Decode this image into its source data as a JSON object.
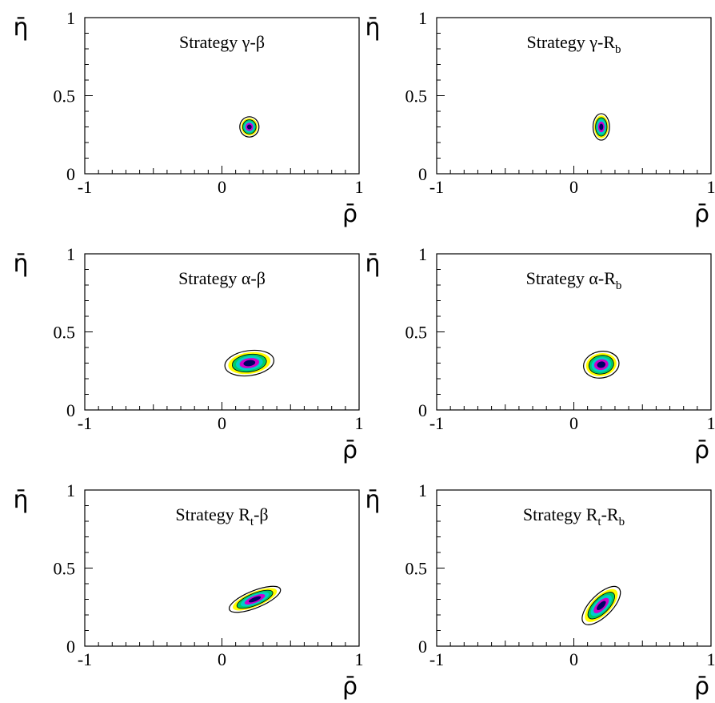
{
  "figure": {
    "panels": [
      {
        "title": "Strategy γ-β",
        "title_main": "Strategy γ-β",
        "title_sub": "",
        "title_tail": ""
      },
      {
        "title": "Strategy γ-Rb",
        "title_main": "Strategy γ-R",
        "title_sub": "b",
        "title_tail": ""
      },
      {
        "title": "Strategy α-β",
        "title_main": "Strategy α-β",
        "title_sub": "",
        "title_tail": ""
      },
      {
        "title": "Strategy α-Rb",
        "title_main": "Strategy α-R",
        "title_sub": "b",
        "title_tail": ""
      },
      {
        "title": "Strategy Rt-β",
        "title_main": "Strategy R",
        "title_sub": "t",
        "title_tail": "-β"
      },
      {
        "title": "Strategy Rt-Rb",
        "title_main": "Strategy R",
        "title_sub": "t",
        "title_tail": "-R",
        "title_sub2": "b"
      }
    ]
  },
  "chart_data": [
    {
      "type": "heatmap",
      "title": "Strategy γ-β",
      "xlabel": "ρ̄",
      "ylabel": "η̄",
      "xlim": [
        -1,
        1
      ],
      "ylim": [
        0,
        1
      ],
      "xticks": [
        "-1",
        "0",
        "1"
      ],
      "yticks": [
        "0",
        "0.5",
        "1"
      ],
      "center": [
        0.2,
        0.3
      ],
      "contour_semi_axes": [
        0.07,
        0.065
      ],
      "tilt_deg": 0,
      "colors": [
        "#ffff00",
        "#00cc66",
        "#00cccc",
        "#cc00cc",
        "#000066"
      ]
    },
    {
      "type": "heatmap",
      "title": "Strategy γ-Rb",
      "xlabel": "ρ̄",
      "ylabel": "η̄",
      "xlim": [
        -1,
        1
      ],
      "ylim": [
        0,
        1
      ],
      "xticks": [
        "-1",
        "0",
        "1"
      ],
      "yticks": [
        "0",
        "0.5",
        "1"
      ],
      "center": [
        0.2,
        0.3
      ],
      "contour_semi_axes": [
        0.06,
        0.085
      ],
      "tilt_deg": 0,
      "colors": [
        "#ffff00",
        "#00cc66",
        "#00cccc",
        "#cc00cc",
        "#000066"
      ]
    },
    {
      "type": "heatmap",
      "title": "Strategy α-β",
      "xlabel": "ρ̄",
      "ylabel": "η̄",
      "xlim": [
        -1,
        1
      ],
      "ylim": [
        0,
        1
      ],
      "xticks": [
        "-1",
        "0",
        "1"
      ],
      "yticks": [
        "0",
        "0.5",
        "1"
      ],
      "center": [
        0.2,
        0.3
      ],
      "contour_semi_axes": [
        0.18,
        0.08
      ],
      "tilt_deg": -8,
      "colors": [
        "#ffff00",
        "#00cc66",
        "#00cccc",
        "#cc00cc",
        "#000066"
      ]
    },
    {
      "type": "heatmap",
      "title": "Strategy α-Rb",
      "xlabel": "ρ̄",
      "ylabel": "η̄",
      "xlim": [
        -1,
        1
      ],
      "ylim": [
        0,
        1
      ],
      "xticks": [
        "-1",
        "0",
        "1"
      ],
      "yticks": [
        "0",
        "0.5",
        "1"
      ],
      "center": [
        0.2,
        0.29
      ],
      "contour_semi_axes": [
        0.13,
        0.085
      ],
      "tilt_deg": -10,
      "colors": [
        "#ffff00",
        "#00cc66",
        "#00cccc",
        "#cc00cc",
        "#000066"
      ]
    },
    {
      "type": "heatmap",
      "title": "Strategy Rt-β",
      "xlabel": "ρ̄",
      "ylabel": "η̄",
      "xlim": [
        -1,
        1
      ],
      "ylim": [
        0,
        1
      ],
      "xticks": [
        "-1",
        "0",
        "1"
      ],
      "yticks": [
        "0",
        "0.5",
        "1"
      ],
      "center": [
        0.24,
        0.3
      ],
      "contour_semi_axes": [
        0.2,
        0.055
      ],
      "tilt_deg": -22,
      "colors": [
        "#ffff00",
        "#00cc66",
        "#00cccc",
        "#cc00cc",
        "#000066"
      ]
    },
    {
      "type": "heatmap",
      "title": "Strategy Rt-Rb",
      "xlabel": "ρ̄",
      "ylabel": "η̄",
      "xlim": [
        -1,
        1
      ],
      "ylim": [
        0,
        1
      ],
      "xticks": [
        "-1",
        "0",
        "1"
      ],
      "yticks": [
        "0",
        "0.5",
        "1"
      ],
      "center": [
        0.2,
        0.26
      ],
      "contour_semi_axes": [
        0.18,
        0.07
      ],
      "tilt_deg": -45,
      "colors": [
        "#ffff00",
        "#00cc66",
        "#00cccc",
        "#cc00cc",
        "#000066"
      ]
    }
  ]
}
